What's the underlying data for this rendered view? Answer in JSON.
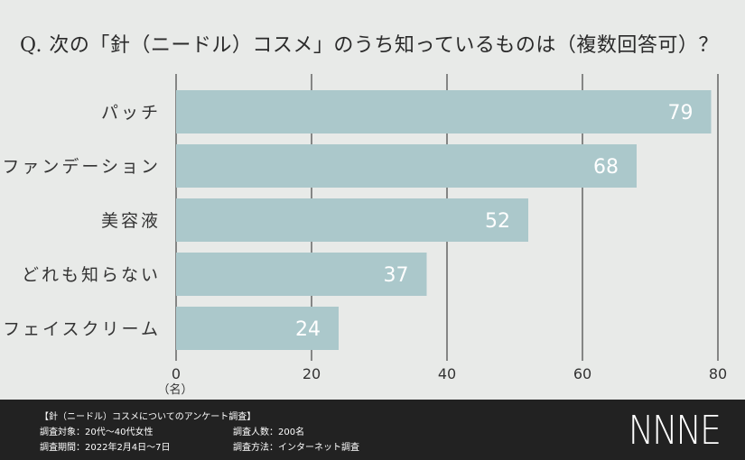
{
  "question": "Q. 次の「針（ニードル）コスメ」のうち知っているものは（複数回答可）？",
  "chart_data": {
    "type": "bar",
    "orientation": "horizontal",
    "categories": [
      "パッチ",
      "ファンデーション",
      "美容液",
      "どれも知らない",
      "フェイスクリーム"
    ],
    "values": [
      79,
      68,
      52,
      37,
      24
    ],
    "xlim": [
      0,
      80
    ],
    "xticks": [
      0,
      20,
      40,
      60,
      80
    ],
    "unit": "（名）",
    "bar_color": "#abc8cb",
    "grid": true
  },
  "footer": {
    "title": "【針（ニードル）コスメについてのアンケート調査】",
    "left": [
      "調査対象：20代～40代女性",
      "調査期間：2022年2月4日～7日"
    ],
    "right": [
      "調査人数：200名",
      "調査方法：インターネット調査"
    ],
    "logo": "NNNE"
  }
}
